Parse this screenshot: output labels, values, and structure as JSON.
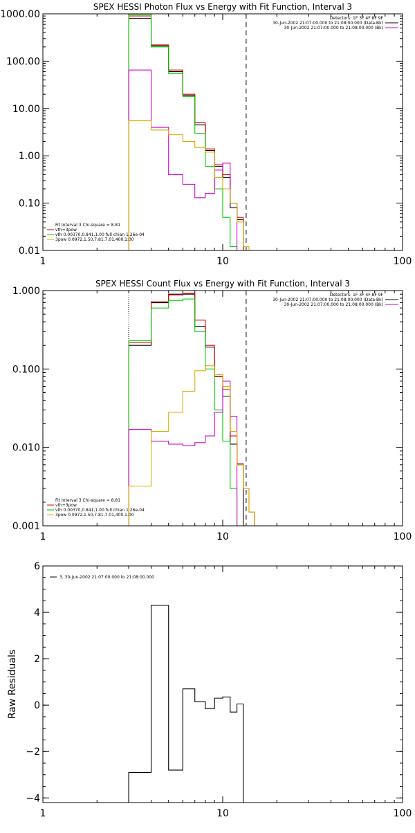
{
  "chart_data": [
    {
      "type": "line",
      "title": "SPEX HESSI Photon Flux vs Energy with Fit Function, Interval 3",
      "x_scale": "log",
      "y_scale": "log",
      "xlim": [
        1,
        100
      ],
      "ylim": [
        0.01,
        1000
      ],
      "x_ticks": [
        1,
        10,
        100
      ],
      "x_tick_labels": [
        "1",
        "10",
        "100"
      ],
      "y_ticks": [
        0.01,
        0.1,
        1,
        10,
        100,
        1000
      ],
      "y_tick_labels": [
        "0.01",
        "0.10",
        "1.00",
        "10.00",
        "100.00",
        "1000.00"
      ],
      "dotted_line_x": 3,
      "dashed_line_x": 13.5,
      "bin_edges": [
        3,
        4,
        5,
        6,
        7,
        8,
        9,
        10,
        11,
        12,
        13,
        14,
        15,
        16
      ],
      "header": [
        "Detectors: 1F 3F 4F 8F 9F",
        "30-Jun-2002 21:07:00.000 to 21:08:00.000 (Data-Bk)",
        "30-Jun-2002 21:07:00.000 to 21:08:00.000 (Bk)"
      ],
      "header_colors": [
        "#000000",
        "#000000",
        "#cc00cc"
      ],
      "fit_info": [
        "Fit Interval 3   Chi-square = 8.81",
        "vth+3pow",
        "vth 0.00370,0.841,1.00  full chian 1.26e-04",
        "3pow 0.0972,1.50,7.81,7.01,400,1.00"
      ],
      "fit_info_colors": [
        "#000000",
        "#cc0000",
        "#00bb00",
        "#ddaa00"
      ],
      "series": [
        {
          "color": "#000000",
          "values": [
            800,
            210,
            60,
            19,
            4.5,
            1.3,
            0.6,
            0.35,
            0.08,
            0.045
          ]
        },
        {
          "color": "#dd0000",
          "values": [
            900,
            220,
            65,
            20,
            5,
            1.4,
            0.65,
            0.4,
            0.1,
            0.05,
            0.01
          ]
        },
        {
          "color": "#00cc00",
          "values": [
            950,
            200,
            55,
            18,
            3,
            0.6,
            0.2,
            0.05,
            0.012,
            0.0
          ]
        },
        {
          "color": "#cc00cc",
          "values": [
            65,
            4,
            0.4,
            0.25,
            0.13,
            0.16,
            0.5,
            0.7,
            0.1,
            0.0
          ]
        },
        {
          "color": "#ddaa00",
          "values": [
            5.5,
            3.5,
            2.8,
            2,
            1.5,
            1.2,
            0.35,
            0.2,
            0.1,
            0.04,
            0.012,
            0.008
          ]
        }
      ]
    },
    {
      "type": "line",
      "title": "SPEX HESSI Count Flux vs Energy with Fit Function, Interval 3",
      "x_scale": "log",
      "y_scale": "log",
      "xlim": [
        1,
        100
      ],
      "ylim": [
        0.001,
        1
      ],
      "x_ticks": [
        1,
        10,
        100
      ],
      "x_tick_labels": [
        "1",
        "10",
        "100"
      ],
      "y_ticks": [
        0.001,
        0.01,
        0.1,
        1
      ],
      "y_tick_labels": [
        "0.001",
        "0.010",
        "0.100",
        "1.000"
      ],
      "dotted_line_x": 3,
      "dashed_line_x": 13.5,
      "bin_edges": [
        3,
        4,
        5,
        6,
        7,
        8,
        9,
        10,
        11,
        12,
        13,
        14,
        15,
        16
      ],
      "header": [
        "Detectors: 1F 3F 4F 8F 9F",
        "30-Jun-2002 21:07:00.000 to 21:08:00.000 (Data-Bk)",
        "30-Jun-2002 21:07:00.000 to 21:08:00.000 (Bk)"
      ],
      "header_colors": [
        "#000000",
        "#000000",
        "#cc00cc"
      ],
      "fit_info": [
        "Fit Interval 3   Chi-square = 8.81",
        "vth+3pow",
        "vth 0.00370,0.841,1.00  full chian 1.26e-04",
        "3pow 0.0972,1.50,7.81,7.01,400,1.00"
      ],
      "fit_info_colors": [
        "#000000",
        "#cc0000",
        "#00bb00",
        "#ddaa00"
      ],
      "series": [
        {
          "color": "#000000",
          "values": [
            0.2,
            0.7,
            0.9,
            0.9,
            0.35,
            0.19,
            0.08,
            0.045,
            0.011,
            0.006
          ]
        },
        {
          "color": "#dd0000",
          "values": [
            0.22,
            0.72,
            0.88,
            0.92,
            0.42,
            0.2,
            0.08,
            0.055,
            0.014,
            0.0062,
            0.003,
            0.0015
          ]
        },
        {
          "color": "#00cc00",
          "values": [
            0.23,
            0.6,
            0.75,
            0.78,
            0.3,
            0.1,
            0.03,
            0.012,
            0.003,
            0.0006
          ]
        },
        {
          "color": "#cc00cc",
          "values": [
            0.017,
            0.012,
            0.011,
            0.0105,
            0.0115,
            0.014,
            0.028,
            0.07,
            0.025,
            0.0008
          ]
        },
        {
          "color": "#ddaa00",
          "values": [
            0.0032,
            0.016,
            0.028,
            0.052,
            0.095,
            0.11,
            0.085,
            0.06,
            0.016,
            0.006,
            0.003,
            0.0015
          ]
        }
      ]
    },
    {
      "type": "line",
      "title": "",
      "x_scale": "log",
      "y_scale": "linear",
      "xlim": [
        1,
        100
      ],
      "ylim": [
        -4.2,
        6
      ],
      "ylabel": "Raw Residuals",
      "x_ticks": [
        1,
        10,
        100
      ],
      "x_tick_labels": [
        "1",
        "10",
        "100"
      ],
      "y_ticks": [
        -4,
        -2,
        0,
        2,
        4,
        6
      ],
      "y_tick_labels": [
        "−4",
        "−2",
        "0",
        "2",
        "4",
        "6"
      ],
      "bin_edges": [
        3,
        4,
        5,
        6,
        7,
        8,
        9,
        10,
        11,
        12,
        13
      ],
      "legend": "3, 30-Jun-2002 21:07:00.000 to 21:08:00.000",
      "series": [
        {
          "color": "#000000",
          "values": [
            -2.9,
            4.3,
            -2.8,
            0.7,
            0.15,
            -0.15,
            0.3,
            0.35,
            -0.3,
            0.05
          ]
        }
      ]
    }
  ]
}
